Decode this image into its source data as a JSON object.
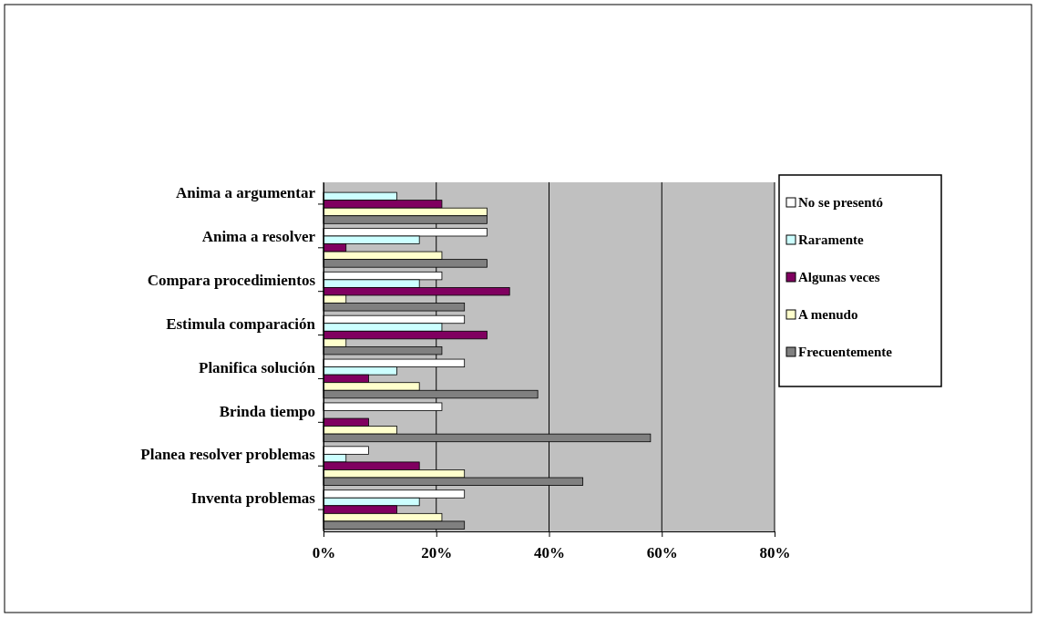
{
  "chart_data": {
    "type": "bar",
    "orientation": "horizontal",
    "categories": [
      "Anima a argumentar",
      "Anima a resolver",
      "Compara procedimientos",
      "Estimula comparación",
      "Planifica solución",
      "Brinda tiempo",
      "Planea resolver problemas",
      "Inventa problemas"
    ],
    "series": [
      {
        "name": "No se presentó",
        "color": "#ffffff",
        "values": [
          null,
          29,
          21,
          25,
          25,
          21,
          8,
          25
        ]
      },
      {
        "name": "Raramente",
        "color": "#ccffff",
        "values": [
          13,
          17,
          17,
          21,
          13,
          0,
          4,
          17
        ]
      },
      {
        "name": "Algunas veces",
        "color": "#800060",
        "values": [
          21,
          4,
          33,
          29,
          8,
          8,
          17,
          13
        ]
      },
      {
        "name": "A menudo",
        "color": "#ffffcc",
        "values": [
          29,
          21,
          4,
          4,
          17,
          13,
          25,
          21
        ]
      },
      {
        "name": "Frecuentemente",
        "color": "#808080",
        "values": [
          29,
          29,
          25,
          21,
          38,
          58,
          46,
          25
        ]
      }
    ],
    "xlim": [
      0,
      80
    ],
    "xticks": [
      {
        "value": 0,
        "label": "0%"
      },
      {
        "value": 20,
        "label": "20%"
      },
      {
        "value": 40,
        "label": "40%"
      },
      {
        "value": 60,
        "label": "60%"
      },
      {
        "value": 80,
        "label": "80%"
      }
    ],
    "grid": "x",
    "legend": "right"
  }
}
